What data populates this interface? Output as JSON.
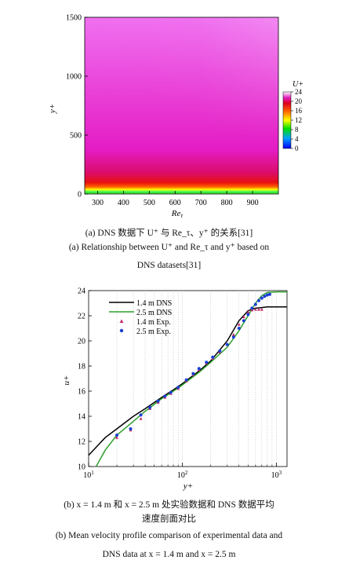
{
  "figure_a": {
    "y_axis_label": "y+",
    "x_axis_label": "Re",
    "x_axis_subscript": "τ",
    "colorbar_title": "U+",
    "colorbar_ticks": [
      "24",
      "20",
      "16",
      "12",
      "8",
      "4",
      "0"
    ],
    "caption_zh": "(a) DNS 数据下 U⁺ 与 Re_τ、y⁺ 的关系[31]",
    "caption_en_line1": "(a) Relationship between U⁺ and Re_τ and y⁺ based on",
    "caption_en_line2": "DNS datasets[31]"
  },
  "figure_b": {
    "legend": [
      {
        "label": "1.4 m DNS",
        "color": "#000000"
      },
      {
        "label": "2.5 m DNS",
        "color": "#2ca02c"
      },
      {
        "label": "1.4 m Exp.",
        "color": "#c0306a"
      },
      {
        "label": "2.5 m Exp.",
        "color": "#1c3fd6"
      }
    ],
    "y_axis_label": "u+",
    "x_axis_label": "y+",
    "caption_zh_line1": "(b) x = 1.4 m 和 x = 2.5 m 处实验数据和 DNS 数据平均",
    "caption_zh_line2": "速度剖面对比",
    "caption_en_line1": "(b) Mean velocity profile comparison of experimental data and",
    "caption_en_line2": "DNS data at x = 1.4 m and x = 2.5 m"
  },
  "chart_data": [
    {
      "type": "heatmap",
      "x_label": "Re_τ",
      "y_label": "y⁺",
      "x_ticks": [
        300,
        400,
        500,
        600,
        700,
        800,
        900
      ],
      "y_ticks": [
        0,
        500,
        1000,
        1500
      ],
      "xlim": [
        250,
        1000
      ],
      "ylim": [
        0,
        1500
      ],
      "colorbar": {
        "label": "U⁺",
        "range": [
          0,
          24
        ],
        "ticks": [
          0,
          4,
          8,
          12,
          16,
          20,
          24
        ]
      }
    },
    {
      "type": "line",
      "x_scale": "log",
      "xlim": [
        10,
        1300
      ],
      "ylim": [
        10,
        24
      ],
      "x_ticks": [
        10,
        100,
        1000
      ],
      "y_ticks": [
        10,
        12,
        14,
        16,
        18,
        20,
        22,
        24
      ],
      "x_label": "y⁺",
      "y_label": "u⁺",
      "series": [
        {
          "name": "1.4 m DNS",
          "style": "line",
          "color": "#000000",
          "x": [
            10,
            15,
            20,
            30,
            40,
            60,
            80,
            100,
            150,
            200,
            300,
            400,
            500,
            600,
            700,
            800,
            1000,
            1300
          ],
          "y": [
            10.9,
            12.3,
            13.0,
            14.0,
            14.6,
            15.5,
            16.1,
            16.6,
            17.6,
            18.4,
            20.0,
            21.6,
            22.4,
            22.6,
            22.65,
            22.7,
            22.7,
            22.7
          ]
        },
        {
          "name": "2.5 m DNS",
          "style": "line",
          "color": "#2ca02c",
          "x": [
            12,
            15,
            20,
            30,
            40,
            60,
            80,
            100,
            150,
            200,
            300,
            400,
            500,
            600,
            700,
            800,
            1000,
            1300
          ],
          "y": [
            10.0,
            11.3,
            12.5,
            13.6,
            14.4,
            15.4,
            16.0,
            16.5,
            17.5,
            18.3,
            19.5,
            20.8,
            22.0,
            23.0,
            23.6,
            23.85,
            23.9,
            23.9
          ]
        },
        {
          "name": "1.4 m Exp.",
          "style": "marker-triangle",
          "color": "#c0306a",
          "x": [
            20,
            28,
            36,
            45,
            55,
            65,
            75,
            90,
            110,
            130,
            150,
            180,
            210,
            250,
            300,
            350,
            400,
            450,
            500,
            550,
            600,
            650,
            700
          ],
          "y": [
            12.3,
            12.9,
            13.8,
            14.6,
            15.1,
            15.5,
            15.8,
            16.2,
            16.8,
            17.3,
            17.7,
            18.2,
            18.6,
            19.1,
            19.7,
            20.5,
            21.3,
            21.9,
            22.3,
            22.45,
            22.5,
            22.5,
            22.5
          ]
        },
        {
          "name": "2.5 m Exp.",
          "style": "marker-circle",
          "color": "#1c3fd6",
          "x": [
            20,
            28,
            36,
            45,
            55,
            65,
            75,
            90,
            110,
            130,
            150,
            180,
            210,
            250,
            300,
            350,
            400,
            450,
            500,
            550,
            600,
            650,
            700,
            750,
            800,
            850
          ],
          "y": [
            12.5,
            13.0,
            14.1,
            14.7,
            15.2,
            15.6,
            15.9,
            16.3,
            16.9,
            17.4,
            17.8,
            18.3,
            18.7,
            19.2,
            19.7,
            20.3,
            21.0,
            21.6,
            22.1,
            22.6,
            22.9,
            23.2,
            23.4,
            23.55,
            23.65,
            23.7
          ]
        }
      ]
    }
  ]
}
